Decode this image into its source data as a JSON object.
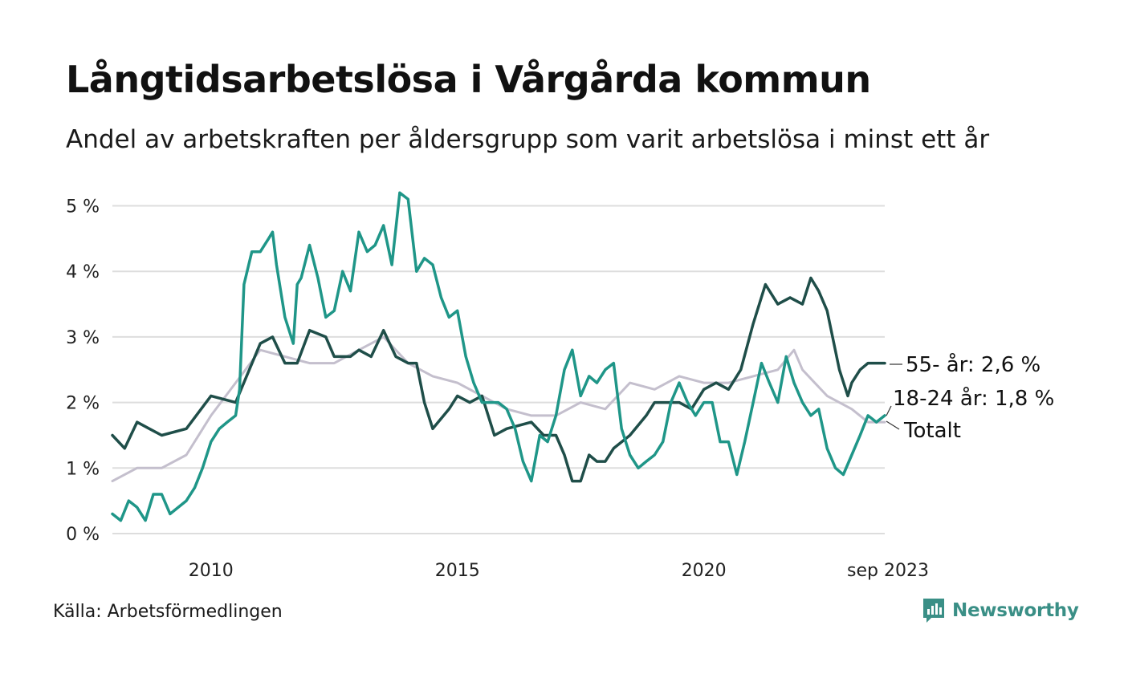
{
  "header": {
    "title": "Långtidsarbetslösa i Vårgårda kommun",
    "subtitle": "Andel av arbetskraften per åldersgrupp som varit arbetslösa i minst ett år"
  },
  "footer": {
    "source": "Källa: Arbetsförmedlingen",
    "brand": "Newsworthy"
  },
  "colors": {
    "total": "#c4bfcd",
    "age55": "#1f4e49",
    "age18_24": "#1f9688",
    "grid": "#dddddd",
    "brand": "#3a8f86"
  },
  "chart_data": {
    "type": "line",
    "title": "Långtidsarbetslösa i Vårgårda kommun",
    "xlabel": "",
    "ylabel": "",
    "x_range": [
      2008.0,
      2023.67
    ],
    "ylim": [
      0,
      5.3
    ],
    "y_ticks": [
      0,
      1,
      2,
      3,
      4,
      5
    ],
    "y_tick_labels": [
      "0 %",
      "1 %",
      "2 %",
      "3 %",
      "4 %",
      "5 %"
    ],
    "x_ticks": [
      2010,
      2015,
      2020,
      2023.67
    ],
    "x_tick_labels": [
      "2010",
      "2015",
      "2020",
      "sep 2023"
    ],
    "grid": true,
    "series": [
      {
        "key": "total",
        "name": "Totalt",
        "end_label": "Totalt",
        "points": [
          [
            2008.0,
            0.8
          ],
          [
            2008.5,
            1.0
          ],
          [
            2009.0,
            1.0
          ],
          [
            2009.5,
            1.2
          ],
          [
            2010.0,
            1.8
          ],
          [
            2010.5,
            2.3
          ],
          [
            2011.0,
            2.8
          ],
          [
            2011.5,
            2.7
          ],
          [
            2012.0,
            2.6
          ],
          [
            2012.5,
            2.6
          ],
          [
            2013.0,
            2.8
          ],
          [
            2013.5,
            3.0
          ],
          [
            2014.0,
            2.6
          ],
          [
            2014.5,
            2.4
          ],
          [
            2015.0,
            2.3
          ],
          [
            2015.5,
            2.1
          ],
          [
            2016.0,
            1.9
          ],
          [
            2016.5,
            1.8
          ],
          [
            2017.0,
            1.8
          ],
          [
            2017.5,
            2.0
          ],
          [
            2018.0,
            1.9
          ],
          [
            2018.5,
            2.3
          ],
          [
            2019.0,
            2.2
          ],
          [
            2019.5,
            2.4
          ],
          [
            2020.0,
            2.3
          ],
          [
            2020.5,
            2.3
          ],
          [
            2021.0,
            2.4
          ],
          [
            2021.5,
            2.5
          ],
          [
            2021.83,
            2.8
          ],
          [
            2022.0,
            2.5
          ],
          [
            2022.5,
            2.1
          ],
          [
            2023.0,
            1.9
          ],
          [
            2023.33,
            1.7
          ],
          [
            2023.67,
            1.7
          ]
        ]
      },
      {
        "key": "age55",
        "name": "55- år",
        "end_label": "55- år: 2,6 %",
        "points": [
          [
            2008.0,
            1.5
          ],
          [
            2008.25,
            1.3
          ],
          [
            2008.5,
            1.7
          ],
          [
            2008.75,
            1.6
          ],
          [
            2009.0,
            1.5
          ],
          [
            2009.5,
            1.6
          ],
          [
            2010.0,
            2.1
          ],
          [
            2010.5,
            2.0
          ],
          [
            2011.0,
            2.9
          ],
          [
            2011.25,
            3.0
          ],
          [
            2011.5,
            2.6
          ],
          [
            2011.75,
            2.6
          ],
          [
            2012.0,
            3.1
          ],
          [
            2012.33,
            3.0
          ],
          [
            2012.5,
            2.7
          ],
          [
            2012.83,
            2.7
          ],
          [
            2013.0,
            2.8
          ],
          [
            2013.25,
            2.7
          ],
          [
            2013.5,
            3.1
          ],
          [
            2013.75,
            2.7
          ],
          [
            2014.0,
            2.6
          ],
          [
            2014.17,
            2.6
          ],
          [
            2014.33,
            2.0
          ],
          [
            2014.5,
            1.6
          ],
          [
            2014.83,
            1.9
          ],
          [
            2015.0,
            2.1
          ],
          [
            2015.25,
            2.0
          ],
          [
            2015.5,
            2.1
          ],
          [
            2015.75,
            1.5
          ],
          [
            2016.0,
            1.6
          ],
          [
            2016.5,
            1.7
          ],
          [
            2016.75,
            1.5
          ],
          [
            2017.0,
            1.5
          ],
          [
            2017.17,
            1.2
          ],
          [
            2017.33,
            0.8
          ],
          [
            2017.5,
            0.8
          ],
          [
            2017.67,
            1.2
          ],
          [
            2017.83,
            1.1
          ],
          [
            2018.0,
            1.1
          ],
          [
            2018.17,
            1.3
          ],
          [
            2018.5,
            1.5
          ],
          [
            2018.83,
            1.8
          ],
          [
            2019.0,
            2.0
          ],
          [
            2019.5,
            2.0
          ],
          [
            2019.75,
            1.9
          ],
          [
            2020.0,
            2.2
          ],
          [
            2020.25,
            2.3
          ],
          [
            2020.5,
            2.2
          ],
          [
            2020.75,
            2.5
          ],
          [
            2021.0,
            3.2
          ],
          [
            2021.25,
            3.8
          ],
          [
            2021.5,
            3.5
          ],
          [
            2021.75,
            3.6
          ],
          [
            2022.0,
            3.5
          ],
          [
            2022.17,
            3.9
          ],
          [
            2022.33,
            3.7
          ],
          [
            2022.5,
            3.4
          ],
          [
            2022.75,
            2.5
          ],
          [
            2022.92,
            2.1
          ],
          [
            2023.0,
            2.3
          ],
          [
            2023.17,
            2.5
          ],
          [
            2023.33,
            2.6
          ],
          [
            2023.5,
            2.6
          ],
          [
            2023.67,
            2.6
          ]
        ]
      },
      {
        "key": "age18_24",
        "name": "18-24 år",
        "end_label": "18-24 år: 1,8 %",
        "points": [
          [
            2008.0,
            0.3
          ],
          [
            2008.17,
            0.2
          ],
          [
            2008.33,
            0.5
          ],
          [
            2008.5,
            0.4
          ],
          [
            2008.67,
            0.2
          ],
          [
            2008.83,
            0.6
          ],
          [
            2009.0,
            0.6
          ],
          [
            2009.17,
            0.3
          ],
          [
            2009.5,
            0.5
          ],
          [
            2009.67,
            0.7
          ],
          [
            2009.83,
            1.0
          ],
          [
            2010.0,
            1.4
          ],
          [
            2010.17,
            1.6
          ],
          [
            2010.33,
            1.7
          ],
          [
            2010.5,
            1.8
          ],
          [
            2010.58,
            2.2
          ],
          [
            2010.67,
            3.8
          ],
          [
            2010.83,
            4.3
          ],
          [
            2011.0,
            4.3
          ],
          [
            2011.17,
            4.5
          ],
          [
            2011.25,
            4.6
          ],
          [
            2011.33,
            4.1
          ],
          [
            2011.5,
            3.3
          ],
          [
            2011.67,
            2.9
          ],
          [
            2011.75,
            3.8
          ],
          [
            2011.83,
            3.9
          ],
          [
            2012.0,
            4.4
          ],
          [
            2012.17,
            3.9
          ],
          [
            2012.33,
            3.3
          ],
          [
            2012.5,
            3.4
          ],
          [
            2012.67,
            4.0
          ],
          [
            2012.83,
            3.7
          ],
          [
            2013.0,
            4.6
          ],
          [
            2013.17,
            4.3
          ],
          [
            2013.33,
            4.4
          ],
          [
            2013.5,
            4.7
          ],
          [
            2013.67,
            4.1
          ],
          [
            2013.83,
            5.2
          ],
          [
            2014.0,
            5.1
          ],
          [
            2014.17,
            4.0
          ],
          [
            2014.33,
            4.2
          ],
          [
            2014.5,
            4.1
          ],
          [
            2014.67,
            3.6
          ],
          [
            2014.83,
            3.3
          ],
          [
            2015.0,
            3.4
          ],
          [
            2015.17,
            2.7
          ],
          [
            2015.33,
            2.3
          ],
          [
            2015.5,
            2.0
          ],
          [
            2015.67,
            2.0
          ],
          [
            2015.83,
            2.0
          ],
          [
            2016.0,
            1.9
          ],
          [
            2016.17,
            1.6
          ],
          [
            2016.33,
            1.1
          ],
          [
            2016.5,
            0.8
          ],
          [
            2016.67,
            1.5
          ],
          [
            2016.83,
            1.4
          ],
          [
            2017.0,
            1.8
          ],
          [
            2017.17,
            2.5
          ],
          [
            2017.33,
            2.8
          ],
          [
            2017.5,
            2.1
          ],
          [
            2017.67,
            2.4
          ],
          [
            2017.83,
            2.3
          ],
          [
            2018.0,
            2.5
          ],
          [
            2018.17,
            2.6
          ],
          [
            2018.33,
            1.6
          ],
          [
            2018.5,
            1.2
          ],
          [
            2018.67,
            1.0
          ],
          [
            2018.83,
            1.1
          ],
          [
            2019.0,
            1.2
          ],
          [
            2019.17,
            1.4
          ],
          [
            2019.33,
            2.0
          ],
          [
            2019.5,
            2.3
          ],
          [
            2019.67,
            2.0
          ],
          [
            2019.83,
            1.8
          ],
          [
            2020.0,
            2.0
          ],
          [
            2020.17,
            2.0
          ],
          [
            2020.33,
            1.4
          ],
          [
            2020.5,
            1.4
          ],
          [
            2020.67,
            0.9
          ],
          [
            2020.83,
            1.4
          ],
          [
            2021.0,
            2.0
          ],
          [
            2021.17,
            2.6
          ],
          [
            2021.33,
            2.3
          ],
          [
            2021.5,
            2.0
          ],
          [
            2021.67,
            2.7
          ],
          [
            2021.83,
            2.3
          ],
          [
            2022.0,
            2.0
          ],
          [
            2022.17,
            1.8
          ],
          [
            2022.33,
            1.9
          ],
          [
            2022.5,
            1.3
          ],
          [
            2022.67,
            1.0
          ],
          [
            2022.83,
            0.9
          ],
          [
            2023.0,
            1.2
          ],
          [
            2023.17,
            1.5
          ],
          [
            2023.33,
            1.8
          ],
          [
            2023.5,
            1.7
          ],
          [
            2023.67,
            1.8
          ]
        ]
      }
    ]
  }
}
